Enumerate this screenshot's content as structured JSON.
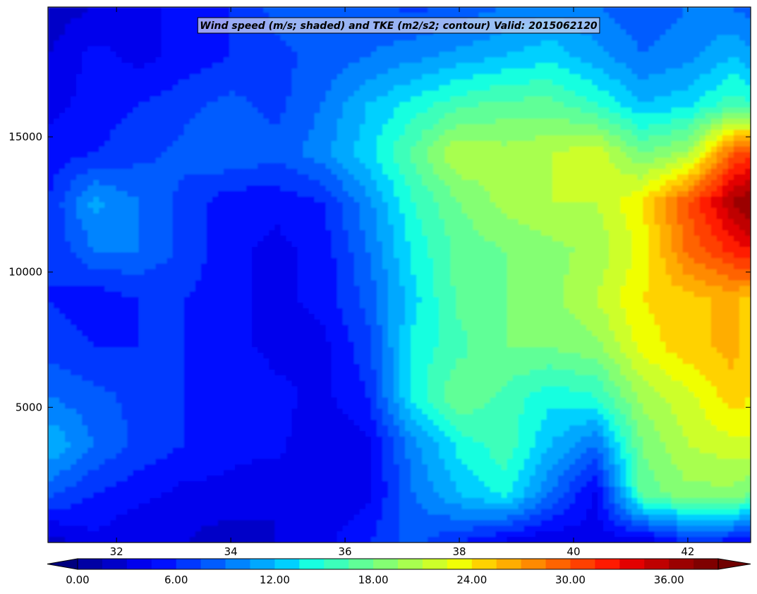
{
  "chart_data": {
    "type": "heatmap",
    "title": "Wind speed (m/s; shaded) and TKE (m2/s2; contour) Valid: 2015062120",
    "xlabel": "",
    "ylabel": "",
    "x_ticks": [
      32,
      34,
      36,
      38,
      40,
      42
    ],
    "x_tick_labels": [
      "32",
      "34",
      "36",
      "38",
      "40",
      "42"
    ],
    "xlim": [
      30.8,
      43.1
    ],
    "y_ticks": [
      5000,
      10000,
      15000
    ],
    "y_tick_labels": [
      "5000",
      "10000",
      "15000"
    ],
    "ylim": [
      0,
      19800
    ],
    "grid": false,
    "colorbar": {
      "levels": [
        0,
        1.5,
        3,
        4.5,
        6,
        7.5,
        9,
        10.5,
        12,
        13.5,
        15,
        16.5,
        18,
        19.5,
        21,
        22.5,
        24,
        25.5,
        27,
        28.5,
        30,
        31.5,
        33,
        34.5,
        36,
        37.5,
        39
      ],
      "tick_values": [
        0,
        6,
        12,
        18,
        24,
        30,
        36
      ],
      "tick_labels": [
        "0.00",
        "6.00",
        "12.00",
        "18.00",
        "24.00",
        "30.00",
        "36.00"
      ],
      "extend": "both",
      "colors": [
        "#00007f",
        "#0000a4",
        "#0000c8",
        "#0000ed",
        "#0010ff",
        "#0038ff",
        "#005cff",
        "#0084ff",
        "#00a8ff",
        "#00d0ff",
        "#18ffe0",
        "#3cffba",
        "#60ff97",
        "#84ff73",
        "#a8ff4f",
        "#cdff2a",
        "#f0ff06",
        "#ffd200",
        "#ffad00",
        "#ff8a00",
        "#ff6400",
        "#ff4000",
        "#ff1a00",
        "#e30000",
        "#bf0000",
        "#9b0000",
        "#7f0000",
        "#700000"
      ]
    },
    "field": {
      "x": [
        30.8,
        31.6,
        32.4,
        33.2,
        34.0,
        34.8,
        35.6,
        36.4,
        37.2,
        38.0,
        38.8,
        39.6,
        40.4,
        41.2,
        42.0,
        42.8,
        43.1
      ],
      "y": [
        0,
        1800,
        3600,
        5400,
        7200,
        9000,
        10800,
        12600,
        14400,
        16200,
        18000,
        19800
      ],
      "values": [
        [
          2,
          4,
          3,
          3,
          2,
          3,
          4,
          6,
          8,
          6,
          4,
          3,
          4,
          3,
          6,
          5,
          4
        ],
        [
          8,
          6,
          5,
          4,
          4,
          3,
          3,
          4,
          9,
          12,
          14,
          9,
          4,
          17,
          19,
          19,
          18
        ],
        [
          12,
          9,
          7,
          6,
          5,
          5,
          3,
          4,
          10,
          14,
          16,
          12,
          9,
          18,
          21,
          22,
          22
        ],
        [
          9,
          8,
          7,
          6,
          6,
          5,
          4,
          6,
          14,
          18,
          16,
          14,
          15,
          20,
          22,
          25,
          24
        ],
        [
          7,
          6,
          6,
          6,
          5,
          4,
          4,
          7,
          14,
          16,
          18,
          18,
          19,
          23,
          25,
          26,
          24
        ],
        [
          6,
          5,
          6,
          6,
          5,
          4,
          5,
          8,
          13,
          17,
          18,
          19,
          21,
          24,
          25,
          26,
          25
        ],
        [
          6,
          9,
          9,
          7,
          5,
          4,
          5,
          9,
          14,
          17,
          18,
          19,
          20,
          23,
          29,
          32,
          33
        ],
        [
          6,
          11,
          9,
          7,
          5,
          5,
          6,
          10,
          15,
          18,
          20,
          21,
          21,
          24,
          30,
          36,
          38
        ],
        [
          5,
          6,
          7,
          8,
          9,
          8,
          10,
          13,
          17,
          21,
          20,
          21,
          22,
          18,
          20,
          30,
          31
        ],
        [
          4,
          5,
          6,
          7,
          8,
          7,
          9,
          12,
          14,
          16,
          17,
          17,
          15,
          12,
          13,
          16,
          15
        ],
        [
          3,
          5,
          4,
          5,
          6,
          7,
          8,
          9,
          10,
          11,
          12,
          13,
          11,
          9,
          10,
          12,
          11
        ],
        [
          2,
          3,
          4,
          5,
          6,
          8,
          9,
          8,
          7,
          8,
          9,
          10,
          9,
          8,
          9,
          9,
          8
        ]
      ]
    }
  }
}
